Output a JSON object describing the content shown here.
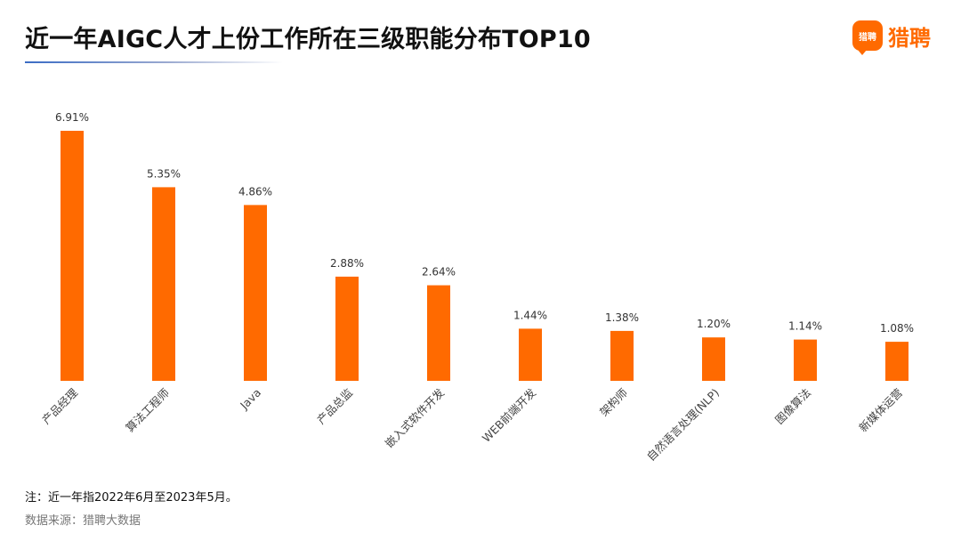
{
  "header": {
    "title": "近一年AIGC人才上份工作所在三级职能分布TOP10"
  },
  "brand": {
    "icon_text": "猎聘",
    "name": "猎聘",
    "color": "#ff6a00"
  },
  "footer": {
    "note": "注：近一年指2022年6月至2023年5月。",
    "source": "数据来源：猎聘大数据"
  },
  "chart_data": {
    "type": "bar",
    "title": "近一年AIGC人才上份工作所在三级职能分布TOP10",
    "categories": [
      "产品经理",
      "算法工程师",
      "Java",
      "产品总监",
      "嵌入式软件开发",
      "WEB前端开发",
      "架构师",
      "自然语言处理(NLP)",
      "图像算法",
      "新媒体运营"
    ],
    "values": [
      6.91,
      5.35,
      4.86,
      2.88,
      2.64,
      1.44,
      1.38,
      1.2,
      1.14,
      1.08
    ],
    "value_labels": [
      "6.91%",
      "5.35%",
      "4.86%",
      "2.88%",
      "2.64%",
      "1.44%",
      "1.38%",
      "1.20%",
      "1.14%",
      "1.08%"
    ],
    "unit": "%",
    "ylim": [
      0,
      7
    ],
    "bar_color": "#ff6a00",
    "grid": false,
    "legend": "none",
    "xlabel": "",
    "ylabel": ""
  }
}
